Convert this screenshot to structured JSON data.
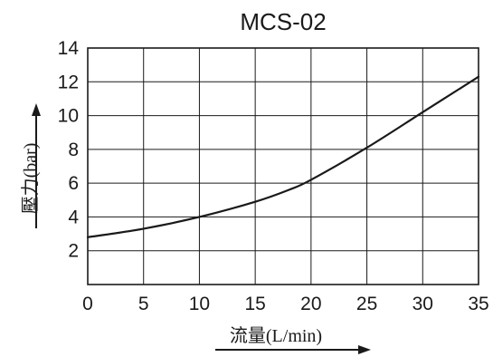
{
  "chart_data": {
    "type": "line",
    "title": "MCS-02",
    "xlabel": "流量(L/min)",
    "ylabel": "壓力(bar)",
    "xlim": [
      0,
      35
    ],
    "ylim": [
      0,
      14
    ],
    "xticks": [
      0,
      5,
      10,
      15,
      20,
      25,
      30,
      35
    ],
    "yticks": [
      2,
      4,
      6,
      8,
      10,
      12,
      14
    ],
    "grid": true,
    "series": [
      {
        "x": [
          0,
          5,
          10,
          15,
          18,
          20,
          25,
          30,
          35
        ],
        "y": [
          2.8,
          3.3,
          4.0,
          4.9,
          5.6,
          6.2,
          8.1,
          10.2,
          12.3
        ]
      }
    ]
  }
}
